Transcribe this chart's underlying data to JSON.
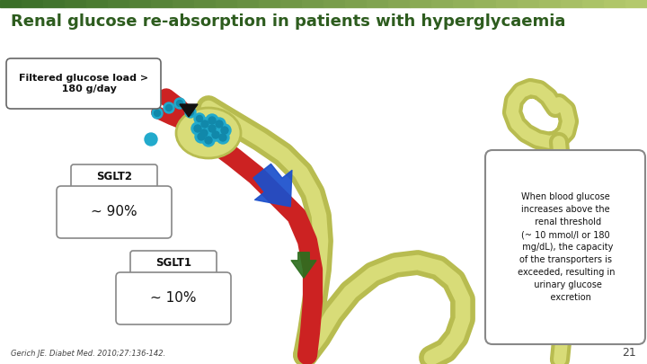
{
  "title": "Renal glucose re-absorption in patients with hyperglycaemia",
  "title_color": "#2d5c1e",
  "title_fontsize": 13,
  "bg_color": "#ffffff",
  "header_color_left": "#3a6e28",
  "header_color_right": "#b8cc6e",
  "filtered_box_text": "Filtered glucose load >\n   180 g/day",
  "sglt2_label": "SGLT2",
  "sglt2_pct": "~ 90%",
  "sglt1_label": "SGLT1",
  "sglt1_pct": "~ 10%",
  "info_box_text": "When blood glucose\nincreases above the\n  renal threshold\n(~ 10 mmol/l or 180\n  mg/dL), the capacity\nof the transporters is\n exceeded, resulting in\n  urinary glucose\n    excretion",
  "citation": "Gerich JE. Diabet Med. 2010;27:136-142.",
  "page_num": "21",
  "box_edge_color": "#888888",
  "box_facecolor": "#ffffff",
  "arrow_blue_color": "#1a4fcc",
  "arrow_green_color": "#2d6e1e",
  "kidney_outer_color": "#c8cc60",
  "kidney_inner_color": "#e0e888",
  "blood_color": "#cc2222",
  "glucose_dot_color": "#22aacc",
  "glucose_dot_dark": "#1188aa"
}
